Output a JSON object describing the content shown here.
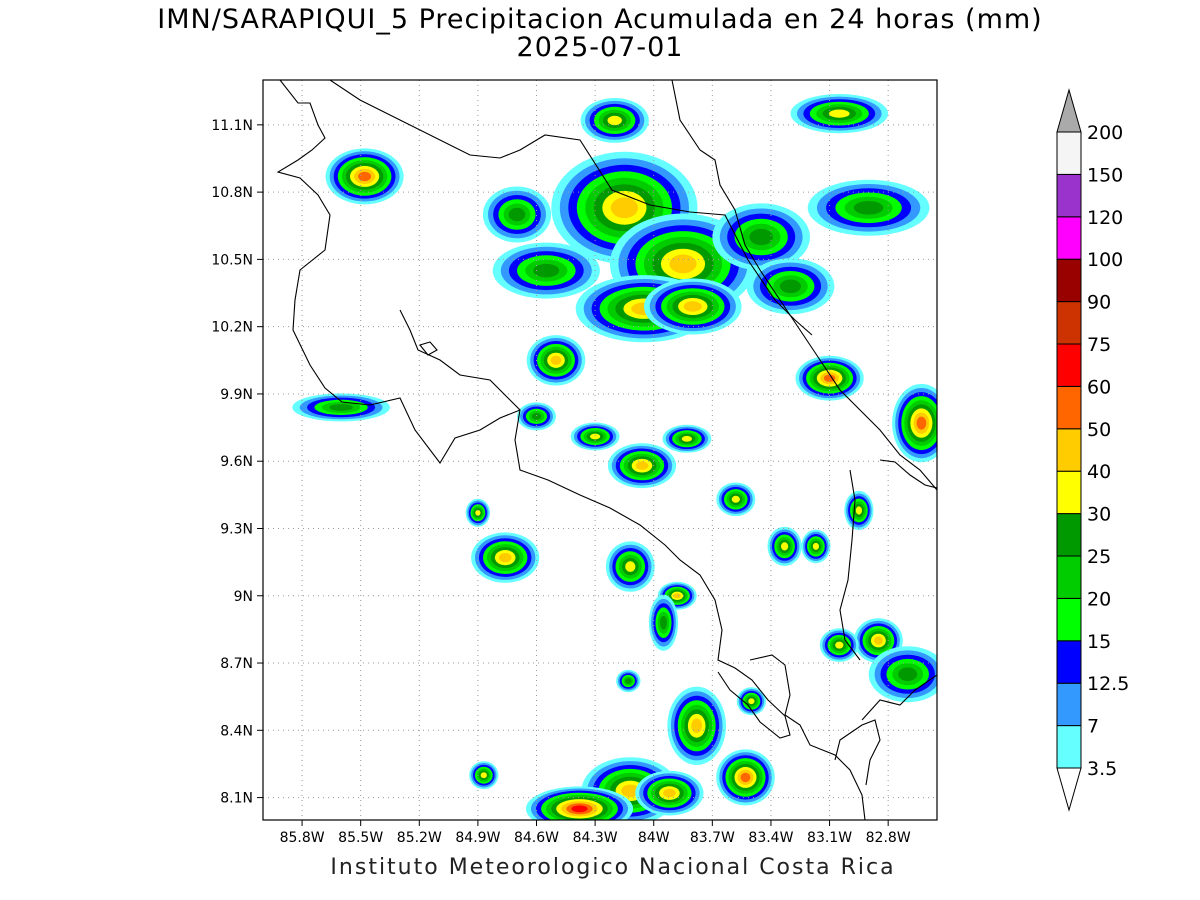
{
  "title": {
    "line1": "IMN/SARAPIQUI_5 Precipitacion Acumulada en 24 horas (mm)",
    "line2": "2025-07-01"
  },
  "footer": "Instituto Meteorologico Nacional Costa Rica",
  "map": {
    "lon_range": [
      -86.0,
      -82.55
    ],
    "lat_range": [
      8.0,
      11.3
    ],
    "lon_ticks": [
      {
        "value": -85.8,
        "label": "85.8W"
      },
      {
        "value": -85.5,
        "label": "85.5W"
      },
      {
        "value": -85.2,
        "label": "85.2W"
      },
      {
        "value": -84.9,
        "label": "84.9W"
      },
      {
        "value": -84.6,
        "label": "84.6W"
      },
      {
        "value": -84.3,
        "label": "84.3W"
      },
      {
        "value": -84.0,
        "label": "84W"
      },
      {
        "value": -83.7,
        "label": "83.7W"
      },
      {
        "value": -83.4,
        "label": "83.4W"
      },
      {
        "value": -83.1,
        "label": "83.1W"
      },
      {
        "value": -82.8,
        "label": "82.8W"
      }
    ],
    "lat_ticks": [
      {
        "value": 11.1,
        "label": "11.1N"
      },
      {
        "value": 10.8,
        "label": "10.8N"
      },
      {
        "value": 10.5,
        "label": "10.5N"
      },
      {
        "value": 10.2,
        "label": "10.2N"
      },
      {
        "value": 9.9,
        "label": "9.9N"
      },
      {
        "value": 9.6,
        "label": "9.6N"
      },
      {
        "value": 9.3,
        "label": "9.3N"
      },
      {
        "value": 9.0,
        "label": "9N"
      },
      {
        "value": 8.7,
        "label": "8.7N"
      },
      {
        "value": 8.4,
        "label": "8.4N"
      },
      {
        "value": 8.1,
        "label": "8.1N"
      }
    ],
    "grid": true
  },
  "colorbar": {
    "levels": [
      {
        "label": "3.5",
        "color": "#66ffff"
      },
      {
        "label": "7",
        "color": "#3399ff"
      },
      {
        "label": "12.5",
        "color": "#0000ff"
      },
      {
        "label": "15",
        "color": "#00ff00"
      },
      {
        "label": "20",
        "color": "#00cc00"
      },
      {
        "label": "25",
        "color": "#009900"
      },
      {
        "label": "30",
        "color": "#ffff00"
      },
      {
        "label": "40",
        "color": "#ffcc00"
      },
      {
        "label": "50",
        "color": "#ff6600"
      },
      {
        "label": "60",
        "color": "#ff0000"
      },
      {
        "label": "75",
        "color": "#cc3300"
      },
      {
        "label": "90",
        "color": "#990000"
      },
      {
        "label": "100",
        "color": "#ff00ff"
      },
      {
        "label": "120",
        "color": "#9933cc"
      },
      {
        "label": "150",
        "color": "#f5f5f5"
      },
      {
        "label": "200",
        "color": "#aaaaaa"
      }
    ]
  },
  "precip_cells": [
    {
      "lon": -85.48,
      "lat": 10.87,
      "rx": 0.16,
      "ry": 0.1,
      "peak": 9
    },
    {
      "lon": -84.15,
      "lat": 10.73,
      "rx": 0.3,
      "ry": 0.2,
      "peak": 8
    },
    {
      "lon": -83.85,
      "lat": 10.48,
      "rx": 0.3,
      "ry": 0.18,
      "peak": 8
    },
    {
      "lon": -84.05,
      "lat": 10.28,
      "rx": 0.28,
      "ry": 0.12,
      "peak": 8
    },
    {
      "lon": -83.8,
      "lat": 10.29,
      "rx": 0.2,
      "ry": 0.1,
      "peak": 8
    },
    {
      "lon": -84.5,
      "lat": 10.05,
      "rx": 0.12,
      "ry": 0.09,
      "peak": 8
    },
    {
      "lon": -83.1,
      "lat": 9.97,
      "rx": 0.14,
      "ry": 0.08,
      "peak": 9
    },
    {
      "lon": -82.63,
      "lat": 9.77,
      "rx": 0.12,
      "ry": 0.14,
      "peak": 9
    },
    {
      "lon": -84.06,
      "lat": 9.58,
      "rx": 0.14,
      "ry": 0.08,
      "peak": 8
    },
    {
      "lon": -84.3,
      "lat": 9.71,
      "rx": 0.1,
      "ry": 0.05,
      "peak": 7
    },
    {
      "lon": -83.83,
      "lat": 9.7,
      "rx": 0.1,
      "ry": 0.05,
      "peak": 7
    },
    {
      "lon": -84.76,
      "lat": 9.17,
      "rx": 0.14,
      "ry": 0.09,
      "peak": 8
    },
    {
      "lon": -84.12,
      "lat": 9.13,
      "rx": 0.1,
      "ry": 0.09,
      "peak": 7
    },
    {
      "lon": -84.9,
      "lat": 9.37,
      "rx": 0.05,
      "ry": 0.05,
      "peak": 7
    },
    {
      "lon": -83.88,
      "lat": 9.0,
      "rx": 0.08,
      "ry": 0.05,
      "peak": 8
    },
    {
      "lon": -83.33,
      "lat": 9.22,
      "rx": 0.07,
      "ry": 0.07,
      "peak": 7
    },
    {
      "lon": -83.17,
      "lat": 9.22,
      "rx": 0.06,
      "ry": 0.06,
      "peak": 7
    },
    {
      "lon": -82.85,
      "lat": 8.8,
      "rx": 0.1,
      "ry": 0.08,
      "peak": 8
    },
    {
      "lon": -83.05,
      "lat": 8.78,
      "rx": 0.08,
      "ry": 0.06,
      "peak": 7
    },
    {
      "lon": -83.78,
      "lat": 8.42,
      "rx": 0.12,
      "ry": 0.14,
      "peak": 8
    },
    {
      "lon": -83.53,
      "lat": 8.19,
      "rx": 0.12,
      "ry": 0.1,
      "peak": 9
    },
    {
      "lon": -84.12,
      "lat": 8.13,
      "rx": 0.2,
      "ry": 0.12,
      "peak": 8
    },
    {
      "lon": -84.38,
      "lat": 8.05,
      "rx": 0.22,
      "ry": 0.08,
      "peak": 10
    },
    {
      "lon": -83.92,
      "lat": 8.12,
      "rx": 0.14,
      "ry": 0.08,
      "peak": 8
    },
    {
      "lon": -84.87,
      "lat": 8.2,
      "rx": 0.06,
      "ry": 0.05,
      "peak": 7
    },
    {
      "lon": -83.5,
      "lat": 8.53,
      "rx": 0.06,
      "ry": 0.05,
      "peak": 7
    },
    {
      "lon": -82.9,
      "lat": 10.73,
      "rx": 0.25,
      "ry": 0.1,
      "peak": 6
    },
    {
      "lon": -83.05,
      "lat": 11.15,
      "rx": 0.2,
      "ry": 0.07,
      "peak": 7
    },
    {
      "lon": -84.2,
      "lat": 11.12,
      "rx": 0.14,
      "ry": 0.08,
      "peak": 7
    },
    {
      "lon": -83.45,
      "lat": 10.6,
      "rx": 0.2,
      "ry": 0.12,
      "peak": 6
    },
    {
      "lon": -83.3,
      "lat": 10.38,
      "rx": 0.18,
      "ry": 0.1,
      "peak": 6
    },
    {
      "lon": -85.6,
      "lat": 9.84,
      "rx": 0.2,
      "ry": 0.05,
      "peak": 6
    },
    {
      "lon": -84.6,
      "lat": 9.8,
      "rx": 0.08,
      "ry": 0.05,
      "peak": 6
    },
    {
      "lon": -83.58,
      "lat": 9.43,
      "rx": 0.08,
      "ry": 0.06,
      "peak": 7
    },
    {
      "lon": -82.95,
      "lat": 9.38,
      "rx": 0.06,
      "ry": 0.07,
      "peak": 7
    },
    {
      "lon": -82.7,
      "lat": 8.65,
      "rx": 0.16,
      "ry": 0.1,
      "peak": 6
    },
    {
      "lon": -83.95,
      "lat": 8.88,
      "rx": 0.06,
      "ry": 0.1,
      "peak": 6
    },
    {
      "lon": -84.13,
      "lat": 8.62,
      "rx": 0.05,
      "ry": 0.04,
      "peak": 6
    },
    {
      "lon": -84.55,
      "lat": 10.45,
      "rx": 0.22,
      "ry": 0.1,
      "peak": 6
    },
    {
      "lon": -84.7,
      "lat": 10.7,
      "rx": 0.14,
      "ry": 0.1,
      "peak": 6
    }
  ]
}
